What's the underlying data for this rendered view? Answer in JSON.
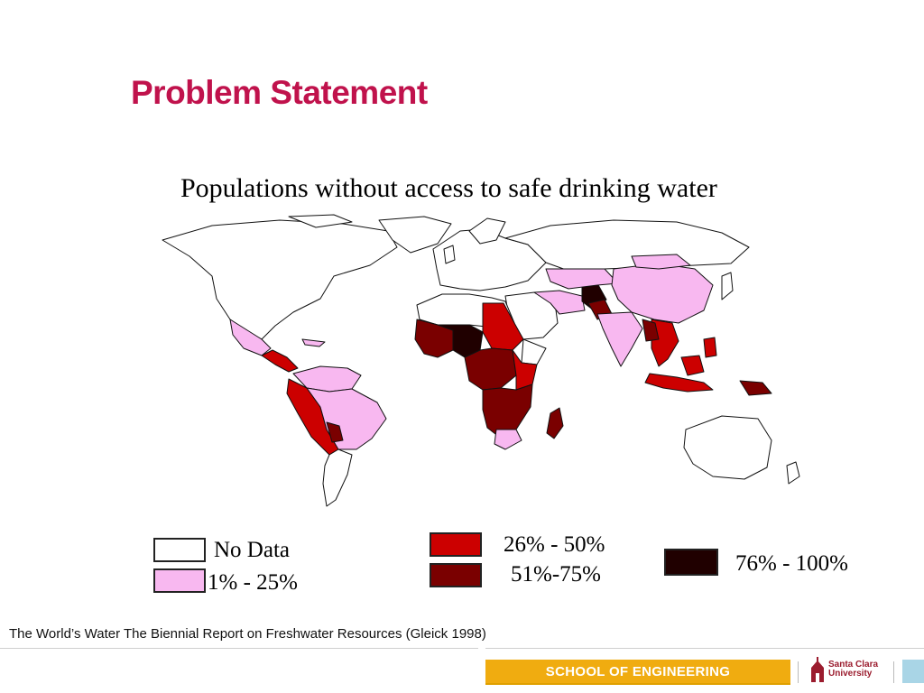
{
  "slide": {
    "title": "Problem Statement",
    "subtitle": "Populations without access to safe drinking water"
  },
  "legend": [
    {
      "label": "No Data",
      "color": "#ffffff"
    },
    {
      "label": "1% - 25%",
      "color": "#f8b8f0"
    },
    {
      "label": "26% - 50%",
      "color": "#cc0000"
    },
    {
      "label": "51%-75%",
      "color": "#7a0000"
    },
    {
      "label": "76% - 100%",
      "color": "#200000"
    }
  ],
  "source": "The World’s Water The Biennial Report on Freshwater Resources (Gleick 1998)",
  "footer": {
    "school": "SCHOOL OF ENGINEERING",
    "logo_line1": "Santa Clara",
    "logo_line2": "University",
    "accent_color": "#f0ac10",
    "brand_color": "#9b1c2e"
  }
}
